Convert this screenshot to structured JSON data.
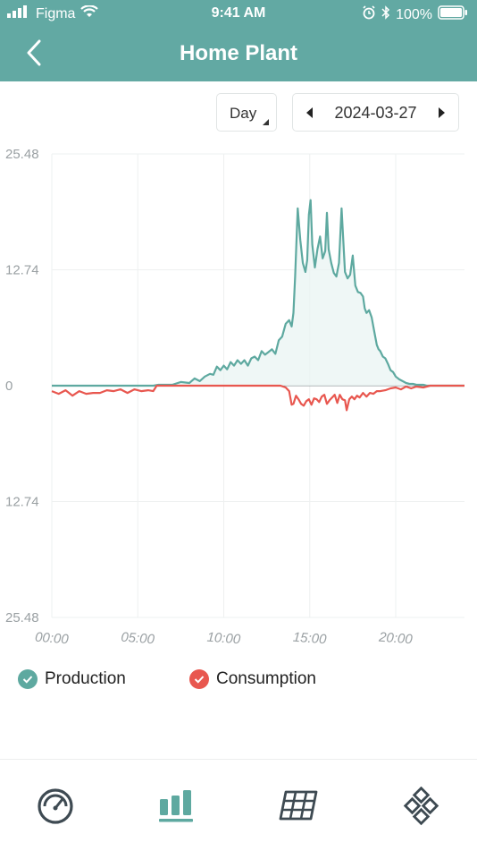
{
  "status_bar": {
    "carrier": "Figma",
    "time": "9:41 AM",
    "battery": "100%"
  },
  "header": {
    "title": "Home Plant",
    "back_icon": "chevron-left-icon"
  },
  "controls": {
    "period": "Day",
    "date": "2024-03-27"
  },
  "colors": {
    "brand": "#62a9a3",
    "production": "#5ea9a0",
    "consumption": "#e8574f",
    "grid": "#eef0f0",
    "axis_text": "#9aa0a3"
  },
  "chart_data": {
    "type": "line",
    "y_tick_labels": [
      "25.48",
      "12.74",
      "0",
      "12.74",
      "25.48"
    ],
    "x_tick_labels": [
      "00:00",
      "05:00",
      "10:00",
      "15:00",
      "20:00"
    ],
    "ylim": [
      -25.48,
      25.48
    ],
    "xlim": [
      0,
      24
    ],
    "grid": true,
    "legend_position": "bottom-left",
    "series": [
      {
        "name": "Production",
        "x": [
          0,
          5.9,
          6.2,
          7,
          7.5,
          8,
          8.3,
          8.6,
          8.9,
          9.2,
          9.4,
          9.6,
          9.8,
          10,
          10.2,
          10.4,
          10.6,
          10.8,
          11,
          11.2,
          11.4,
          11.6,
          11.8,
          12,
          12.2,
          12.4,
          12.6,
          12.8,
          13,
          13.2,
          13.4,
          13.6,
          13.8,
          13.95,
          14.05,
          14.15,
          14.3,
          14.45,
          14.6,
          14.75,
          14.85,
          14.95,
          15.05,
          15.15,
          15.3,
          15.45,
          15.6,
          15.75,
          15.9,
          16.0,
          16.1,
          16.25,
          16.4,
          16.55,
          16.7,
          16.85,
          16.95,
          17.05,
          17.2,
          17.35,
          17.5,
          17.65,
          17.8,
          17.95,
          18.1,
          18.2,
          18.3,
          18.45,
          18.6,
          18.75,
          18.9,
          19.0,
          19.1,
          19.25,
          19.4,
          19.55,
          19.7,
          19.85,
          20.0,
          20.2,
          20.4,
          20.6,
          20.8,
          21.0,
          21.2,
          21.4,
          21.6,
          21.8,
          22.0,
          22.5,
          23.0,
          23.5,
          24
        ],
        "values": [
          0,
          0,
          0.1,
          0.1,
          0.4,
          0.3,
          0.8,
          0.5,
          1.0,
          1.3,
          1.2,
          2.1,
          1.7,
          2.2,
          1.8,
          2.6,
          2.2,
          2.8,
          2.4,
          2.8,
          2.2,
          3.0,
          3.2,
          2.8,
          3.8,
          3.4,
          3.7,
          4.0,
          3.5,
          5.0,
          5.4,
          6.8,
          7.2,
          6.5,
          8.0,
          12.0,
          19.5,
          16.0,
          13.5,
          12.5,
          13.8,
          18.8,
          20.4,
          15.5,
          13.0,
          15.0,
          16.4,
          14.0,
          14.8,
          19.0,
          15.0,
          13.5,
          12.4,
          12.0,
          13.5,
          19.5,
          16.0,
          12.5,
          11.8,
          12.2,
          14.3,
          11.0,
          10.3,
          10.2,
          9.8,
          8.5,
          8.0,
          8.3,
          7.5,
          6.0,
          4.5,
          4.0,
          3.8,
          3.2,
          3.0,
          2.4,
          1.7,
          1.5,
          1.0,
          0.7,
          0.5,
          0.3,
          0.2,
          0.2,
          0.1,
          0.1,
          0.1,
          0,
          0,
          0,
          0,
          0,
          0
        ]
      },
      {
        "name": "Consumption",
        "x": [
          0,
          0.4,
          0.8,
          1.0,
          1.2,
          1.6,
          2.0,
          2.4,
          2.8,
          3.2,
          3.6,
          4.0,
          4.4,
          4.8,
          5.2,
          5.6,
          5.9,
          6.1,
          8,
          10,
          12,
          13.3,
          13.6,
          13.8,
          13.95,
          14.05,
          14.2,
          14.35,
          14.5,
          14.65,
          14.8,
          14.95,
          15.1,
          15.25,
          15.4,
          15.55,
          15.7,
          15.85,
          16.0,
          16.15,
          16.3,
          16.45,
          16.6,
          16.75,
          16.9,
          17.05,
          17.15,
          17.3,
          17.45,
          17.6,
          17.75,
          17.9,
          18.1,
          18.3,
          18.5,
          18.7,
          18.9,
          19.1,
          19.4,
          19.7,
          20.0,
          20.3,
          20.6,
          20.9,
          21.2,
          21.6,
          22.0,
          23.0,
          24
        ],
        "values": [
          -0.6,
          -0.9,
          -0.5,
          -0.8,
          -1.1,
          -0.6,
          -0.9,
          -0.8,
          -0.8,
          -0.5,
          -0.6,
          -0.4,
          -0.8,
          -0.4,
          -0.6,
          -0.5,
          -0.6,
          0,
          0,
          0,
          0,
          0,
          -0.2,
          -0.6,
          -2.1,
          -2.0,
          -1.1,
          -1.5,
          -2.0,
          -2.2,
          -1.7,
          -1.5,
          -2.1,
          -1.4,
          -1.5,
          -1.8,
          -1.2,
          -1.0,
          -2.0,
          -1.6,
          -1.3,
          -1.0,
          -1.9,
          -1.0,
          -1.5,
          -1.6,
          -2.7,
          -1.5,
          -1.2,
          -1.5,
          -1.1,
          -1.3,
          -0.8,
          -1.2,
          -0.8,
          -0.9,
          -0.6,
          -0.6,
          -0.5,
          -0.3,
          -0.2,
          -0.4,
          -0.1,
          -0.3,
          -0.1,
          -0.2,
          0,
          0,
          0
        ]
      }
    ]
  },
  "tabs": [
    {
      "icon": "gauge-icon",
      "active": false
    },
    {
      "icon": "bar-chart-icon",
      "active": true
    },
    {
      "icon": "solar-panel-icon",
      "active": false
    },
    {
      "icon": "device-grid-icon",
      "active": false
    }
  ]
}
